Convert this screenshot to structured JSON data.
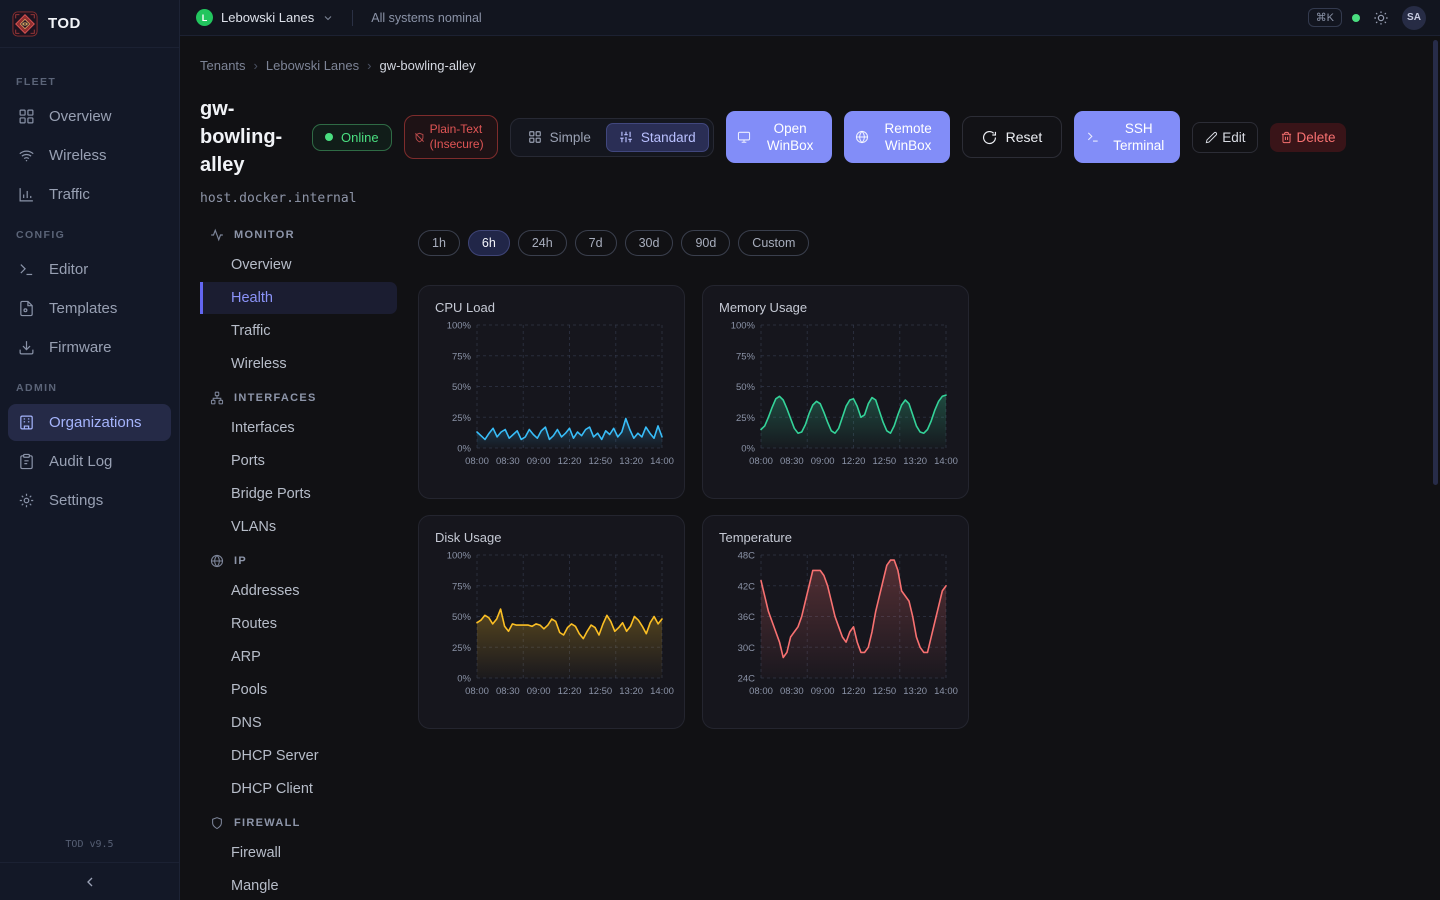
{
  "app": {
    "name": "TOD",
    "version": "TOD v9.5",
    "collapse_icon": "‹"
  },
  "topbar": {
    "tenant": "Lebowski Lanes",
    "tenant_initial": "L",
    "status_message": "All systems nominal",
    "kbd_shortcut": "⌘K",
    "avatar_initials": "SA"
  },
  "sidebar": {
    "sections": [
      {
        "label": "FLEET",
        "items": [
          {
            "label": "Overview",
            "icon": "grid-icon"
          },
          {
            "label": "Wireless",
            "icon": "wifi-icon"
          },
          {
            "label": "Traffic",
            "icon": "bar-chart-icon"
          }
        ]
      },
      {
        "label": "CONFIG",
        "items": [
          {
            "label": "Editor",
            "icon": "terminal-icon"
          },
          {
            "label": "Templates",
            "icon": "file-icon"
          },
          {
            "label": "Firmware",
            "icon": "download-icon"
          }
        ]
      },
      {
        "label": "ADMIN",
        "items": [
          {
            "label": "Organizations",
            "icon": "building-icon",
            "active": true
          },
          {
            "label": "Audit Log",
            "icon": "clipboard-icon"
          },
          {
            "label": "Settings",
            "icon": "gear-icon"
          }
        ]
      }
    ]
  },
  "breadcrumb": {
    "items": [
      "Tenants",
      "Lebowski Lanes",
      "gw-bowling-alley"
    ],
    "separator": "›"
  },
  "device": {
    "name": "gw-bowling-alley",
    "host": "host.docker.internal",
    "status_badge": "Online",
    "security_badge": "Plain-Text (Insecure)"
  },
  "view_toggle": {
    "simple": "Simple",
    "standard": "Standard",
    "active": "Standard"
  },
  "actions": {
    "open_winbox": "Open WinBox",
    "remote_winbox": "Remote WinBox",
    "reset": "Reset",
    "ssh_terminal": "SSH Terminal",
    "edit": "Edit",
    "delete": "Delete"
  },
  "subnav": {
    "groups": [
      {
        "label": "MONITOR",
        "icon": "activity-icon",
        "active_item": "Health",
        "items": [
          "Overview",
          "Health",
          "Traffic",
          "Wireless"
        ]
      },
      {
        "label": "INTERFACES",
        "icon": "network-icon",
        "items": [
          "Interfaces",
          "Ports",
          "Bridge Ports",
          "VLANs"
        ]
      },
      {
        "label": "IP",
        "icon": "globe-icon",
        "items": [
          "Addresses",
          "Routes",
          "ARP",
          "Pools",
          "DNS",
          "DHCP Server",
          "DHCP Client"
        ]
      },
      {
        "label": "FIREWALL",
        "icon": "shield-icon",
        "items": [
          "Firewall",
          "Mangle"
        ]
      }
    ]
  },
  "time_range": {
    "options": [
      "1h",
      "6h",
      "24h",
      "7d",
      "30d",
      "90d",
      "Custom"
    ],
    "active": "6h"
  },
  "colors": {
    "accent_purple": "#828df8",
    "online_green": "#4ade80",
    "danger_red": "#f87171",
    "grid_line": "#394056"
  },
  "chart_data": [
    {
      "type": "line",
      "title": "CPU Load",
      "color": "#38bdf8",
      "ylim": [
        0,
        100
      ],
      "y_ticks": [
        "100%",
        "75%",
        "50%",
        "25%",
        "0%"
      ],
      "x_ticks": [
        "08:00",
        "08:30",
        "09:00",
        "12:20",
        "12:50",
        "13:20",
        "14:00"
      ],
      "values": [
        13,
        10,
        7,
        12,
        16,
        9,
        13,
        15,
        8,
        11,
        14,
        7,
        9,
        15,
        11,
        8,
        14,
        17,
        7,
        10,
        15,
        9,
        12,
        16,
        8,
        13,
        10,
        15,
        17,
        9,
        12,
        7,
        14,
        11,
        16,
        9,
        13,
        24,
        15,
        8,
        12,
        9,
        17,
        12,
        8,
        18,
        9
      ]
    },
    {
      "type": "line",
      "title": "Memory Usage",
      "color": "#34d399",
      "ylim": [
        0,
        100
      ],
      "y_ticks": [
        "100%",
        "75%",
        "50%",
        "25%",
        "0%"
      ],
      "x_ticks": [
        "08:00",
        "08:30",
        "09:00",
        "12:20",
        "12:50",
        "13:20",
        "14:00"
      ],
      "values": [
        15,
        18,
        25,
        33,
        40,
        42,
        39,
        32,
        24,
        16,
        12,
        13,
        19,
        28,
        35,
        38,
        36,
        29,
        21,
        14,
        12,
        16,
        25,
        34,
        39,
        40,
        34,
        25,
        27,
        36,
        41,
        39,
        30,
        21,
        14,
        12,
        18,
        27,
        35,
        39,
        36,
        27,
        18,
        13,
        12,
        15,
        22,
        31,
        38,
        42,
        43
      ]
    },
    {
      "type": "line",
      "title": "Disk Usage",
      "color": "#fbbf24",
      "ylim": [
        0,
        100
      ],
      "y_ticks": [
        "100%",
        "75%",
        "50%",
        "25%",
        "0%"
      ],
      "x_ticks": [
        "08:00",
        "08:30",
        "09:00",
        "12:20",
        "12:50",
        "13:20",
        "14:00"
      ],
      "values": [
        45,
        47,
        51,
        49,
        44,
        48,
        56,
        42,
        38,
        44,
        43,
        43,
        43,
        43,
        42,
        44,
        43,
        40,
        43,
        48,
        46,
        37,
        35,
        41,
        44,
        42,
        36,
        32,
        38,
        43,
        41,
        35,
        44,
        51,
        46,
        38,
        41,
        45,
        38,
        42,
        50,
        47,
        42,
        36,
        45,
        50,
        44,
        48
      ]
    },
    {
      "type": "line",
      "title": "Temperature",
      "color": "#f87171",
      "ylim": [
        24,
        48
      ],
      "y_ticks": [
        "48C",
        "42C",
        "36C",
        "30C",
        "24C"
      ],
      "x_ticks": [
        "08:00",
        "08:30",
        "09:00",
        "12:20",
        "12:50",
        "13:20",
        "14:00"
      ],
      "values": [
        43,
        40,
        37,
        35,
        33,
        31,
        28,
        29,
        32,
        33,
        34,
        36,
        39,
        42,
        45,
        45,
        45,
        44,
        42,
        39,
        36,
        34,
        32,
        31,
        33,
        34,
        31,
        29,
        29,
        30,
        33,
        37,
        40,
        43,
        46,
        47,
        47,
        45,
        41,
        40,
        39,
        36,
        32,
        30,
        29,
        29,
        32,
        35,
        38,
        41,
        42
      ]
    }
  ]
}
